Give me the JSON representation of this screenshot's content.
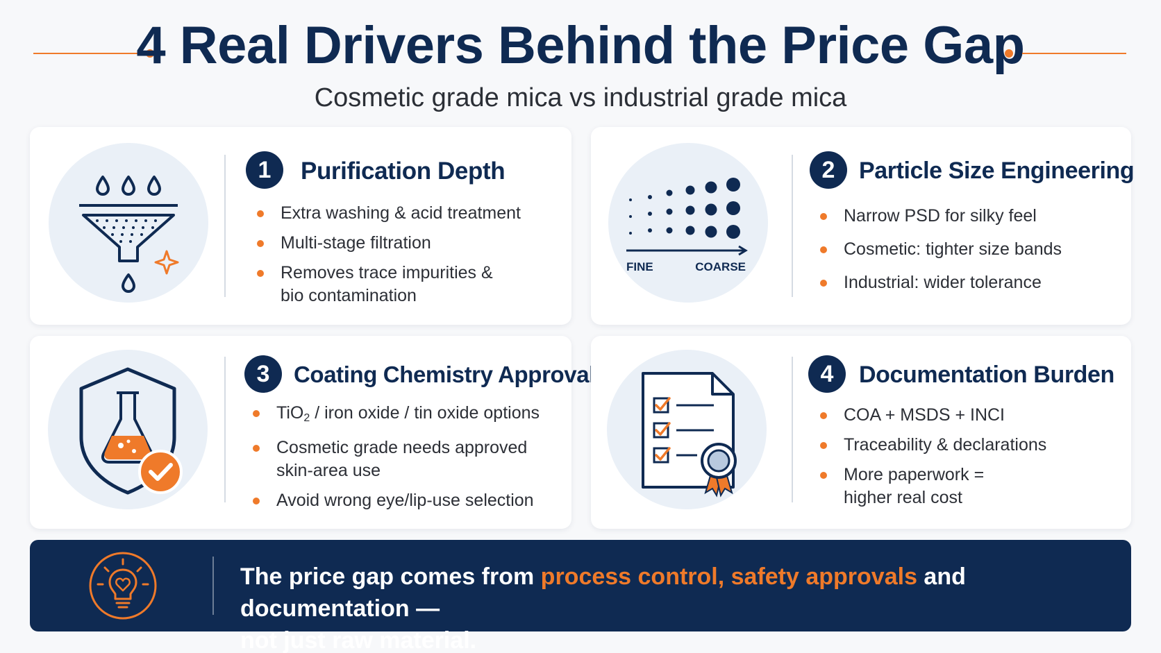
{
  "header": {
    "title": "4 Real Drivers Behind the Price Gap",
    "subtitle": "Cosmetic grade mica vs industrial grade mica"
  },
  "cards": [
    {
      "number": "1",
      "title": "Purification Depth",
      "icon": "funnel-filter-icon",
      "bullets": [
        {
          "text": "Extra washing & acid treatment"
        },
        {
          "text": "Multi-stage filtration"
        },
        {
          "text": "Removes trace impurities &",
          "text2": "bio contamination"
        }
      ]
    },
    {
      "number": "2",
      "title": "Particle Size Engineering",
      "icon": "particle-size-scale-icon",
      "icon_labels": {
        "fine": "FINE",
        "coarse": "COARSE"
      },
      "bullets": [
        {
          "text": "Narrow PSD for silky feel"
        },
        {
          "text": "Cosmetic: tighter size bands"
        },
        {
          "text": "Industrial: wider tolerance"
        }
      ]
    },
    {
      "number": "3",
      "title": "Coating Chemistry Approvals",
      "icon": "shield-flask-check-icon",
      "bullets": [
        {
          "pre": "TiO",
          "sub": "2",
          "post": " / iron oxide / tin oxide options"
        },
        {
          "text": "Cosmetic grade needs approved",
          "text2": "skin-area use"
        },
        {
          "text": "Avoid wrong eye/lip-use selection"
        }
      ]
    },
    {
      "number": "4",
      "title": "Documentation Burden",
      "icon": "checklist-document-ribbon-icon",
      "bullets": [
        {
          "text": "COA + MSDS + INCI"
        },
        {
          "text": "Traceability & declarations"
        },
        {
          "text": "More paperwork =",
          "text2": "higher real cost"
        }
      ]
    }
  ],
  "banner": {
    "icon": "lightbulb-heart-icon",
    "text_before": "The price gap comes from ",
    "highlight": "process control, safety approvals",
    "text_after": " and documentation —",
    "line2": "not just raw material."
  },
  "colors": {
    "navy": "#0f2a52",
    "accent_orange": "#ef7a2a",
    "icon_circle": "#eaf0f7",
    "card_bg": "#ffffff"
  }
}
